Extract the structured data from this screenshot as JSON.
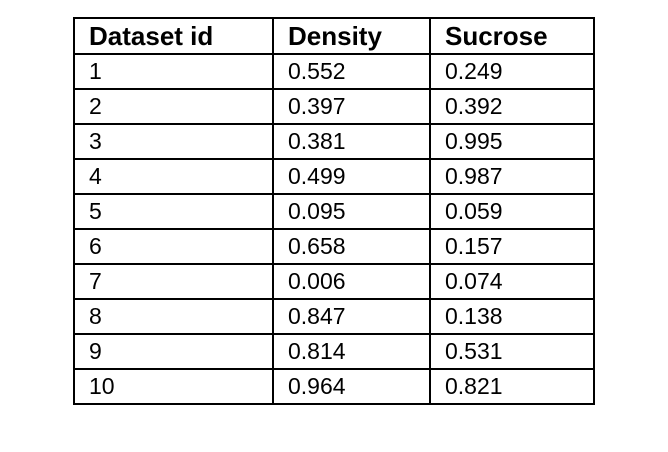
{
  "table": {
    "headers": [
      "Dataset id",
      "Density",
      "Sucrose"
    ],
    "rows": [
      [
        "1",
        "0.552",
        "0.249"
      ],
      [
        "2",
        "0.397",
        "0.392"
      ],
      [
        "3",
        "0.381",
        "0.995"
      ],
      [
        "4",
        "0.499",
        "0.987"
      ],
      [
        "5",
        "0.095",
        "0.059"
      ],
      [
        "6",
        "0.658",
        "0.157"
      ],
      [
        "7",
        "0.006",
        "0.074"
      ],
      [
        "8",
        "0.847",
        "0.138"
      ],
      [
        "9",
        "0.814",
        "0.531"
      ],
      [
        "10",
        "0.964",
        "0.821"
      ]
    ]
  }
}
